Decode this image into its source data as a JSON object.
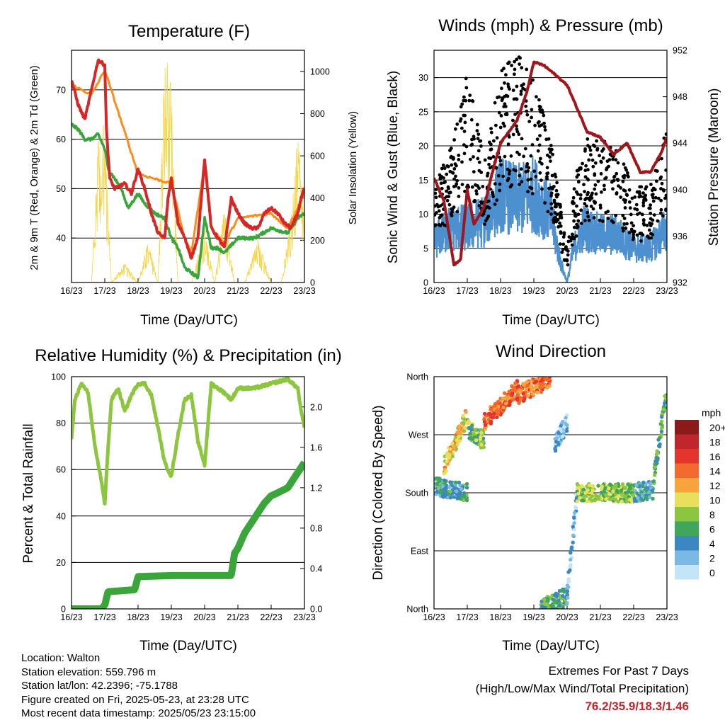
{
  "x_tick_labels": [
    "16/23",
    "17/23",
    "18/23",
    "19/23",
    "20/23",
    "21/23",
    "22/23",
    "23/23"
  ],
  "xlabel": "Time (Day/UTC)",
  "panels": {
    "temperature": {
      "title": "Temperature (F)",
      "ylabel_left": "2m & 9m T (Red, Orange) & 2m Td (Green)",
      "ylabel_right": "Solar Insolation (Yellow)",
      "yticks_left": [
        "40",
        "50",
        "60",
        "70"
      ],
      "yticks_right": [
        "0",
        "200",
        "400",
        "600",
        "800",
        "1000"
      ]
    },
    "winds": {
      "title": "Winds (mph) & Pressure (mb)",
      "ylabel_left": "Sonic Wind & Gust (Blue, Black)",
      "ylabel_right": "Station Pressure (Maroon)",
      "yticks_left": [
        "0",
        "5",
        "10",
        "15",
        "20",
        "25",
        "30"
      ],
      "yticks_right": [
        "932",
        "936",
        "940",
        "944",
        "948",
        "952"
      ]
    },
    "humidity": {
      "title": "Relative Humidity (%) & Precipitation (in)",
      "ylabel_left": "Percent & Total Rainfall",
      "yticks_left": [
        "0",
        "20",
        "40",
        "60",
        "80",
        "100"
      ],
      "yticks_right": [
        "0.0",
        "0.4",
        "0.8",
        "1.2",
        "1.6",
        "2.0"
      ]
    },
    "direction": {
      "title": "Wind Direction",
      "ylabel_left": "Direction (Colored By Speed)",
      "yticks_left": [
        "North",
        "East",
        "South",
        "West",
        "North"
      ],
      "legend_title": "mph",
      "legend_labels": [
        "20+",
        "18",
        "16",
        "14",
        "12",
        "10",
        "8",
        "6",
        "4",
        "2",
        "0"
      ],
      "legend_colors": [
        "#8b1a1a",
        "#c0272d",
        "#e3352b",
        "#f26a2e",
        "#f9a33d",
        "#e8e05a",
        "#8cc63f",
        "#3fa65b",
        "#3b87c4",
        "#7ab8e6",
        "#c4e4f7"
      ]
    }
  },
  "footer": {
    "location": "Location: Walton",
    "elevation": "Station elevation: 559.796 m",
    "latlon": "Station lat/lon: 42.2396; -75.1788",
    "created": "Figure created on Fri, 2025-05-23, at 23:28 UTC",
    "recent": "Most recent data timestamp: 2025/05/23 23:15:00"
  },
  "extremes": {
    "title": "Extremes For Past 7 Days",
    "subtitle": "(High/Low/Max Wind/Total Precipitation)",
    "values": "76.2/35.9/18.3/1.46"
  },
  "chart_data": [
    {
      "type": "line",
      "title": "Temperature (F)",
      "x_unit": "days since 16/23 UTC",
      "ylim": [
        31,
        78
      ],
      "y2lim": [
        0,
        1100
      ],
      "series": [
        {
          "name": "2m T",
          "color": "#d62728",
          "x": [
            0,
            0.2,
            0.4,
            0.6,
            0.8,
            1.0,
            1.05,
            1.15,
            1.3,
            1.6,
            1.8,
            2.0,
            2.2,
            2.4,
            2.6,
            2.8,
            2.9,
            3.0,
            3.2,
            3.4,
            3.6,
            3.8,
            4.0,
            4.2,
            4.4,
            4.6,
            4.8,
            5.0,
            5.2,
            5.4,
            5.6,
            5.8,
            6.0,
            6.2,
            6.4,
            6.6,
            6.8,
            6.9,
            7.0
          ],
          "y": [
            72,
            67,
            64,
            70,
            76,
            75,
            62,
            52,
            50,
            51,
            49,
            54,
            50,
            45,
            41,
            40,
            48,
            52,
            43,
            40,
            36,
            40,
            56,
            42,
            40,
            38,
            48,
            45,
            43,
            42,
            42,
            45,
            46,
            45,
            43,
            42,
            45,
            48,
            50
          ]
        },
        {
          "name": "9m T",
          "color": "#ff8c1a",
          "x": [
            0,
            0.6,
            1.0,
            2.0,
            3.0,
            3.4,
            3.6,
            4.0,
            4.2,
            4.6,
            5.0,
            6.0,
            6.5,
            7.0
          ],
          "y": [
            71,
            69,
            74,
            53,
            51,
            40,
            37,
            55,
            42,
            39,
            44,
            45,
            42,
            49
          ]
        },
        {
          "name": "2m Td",
          "color": "#3aa53a",
          "x": [
            0,
            0.2,
            0.4,
            0.6,
            0.8,
            1.0,
            1.1,
            1.3,
            1.5,
            1.7,
            2.0,
            2.2,
            2.5,
            2.8,
            3.0,
            3.2,
            3.4,
            3.6,
            3.8,
            4.0,
            4.2,
            4.4,
            4.6,
            5.0,
            5.5,
            6.0,
            6.5,
            6.8,
            7.0
          ],
          "y": [
            63,
            62,
            60,
            60,
            61,
            58,
            54,
            52,
            50,
            46,
            49,
            47,
            45,
            44,
            40,
            38,
            34,
            33,
            32,
            44,
            38,
            38,
            37,
            40,
            40,
            42,
            41,
            44,
            45
          ]
        },
        {
          "name": "Solar Insolation",
          "axis": "y2",
          "color": "#f4d64b",
          "x": [
            0,
            0.6,
            0.8,
            1.0,
            1.2,
            1.6,
            2.0,
            2.3,
            2.6,
            2.8,
            3.0,
            3.2,
            3.6,
            4.0,
            4.3,
            4.6,
            4.9,
            5.2,
            5.6,
            6.0,
            6.3,
            6.6,
            6.8,
            6.9,
            7.0
          ],
          "y": [
            0,
            0,
            650,
            750,
            0,
            90,
            0,
            190,
            0,
            1100,
            900,
            0,
            0,
            250,
            0,
            350,
            0,
            0,
            200,
            0,
            0,
            300,
            680,
            500,
            350
          ]
        }
      ]
    },
    {
      "type": "line",
      "title": "Winds (mph) & Pressure (mb)",
      "x_unit": "days since 16/23 UTC",
      "ylim": [
        0,
        34
      ],
      "y2lim": [
        932,
        952
      ],
      "series": [
        {
          "name": "Sonic Wind",
          "color": "#4d90d0",
          "x": [
            0,
            0.5,
            1.0,
            1.5,
            2.0,
            2.5,
            3.0,
            3.5,
            3.8,
            4.0,
            4.2,
            4.5,
            5.0,
            5.5,
            6.0,
            6.5,
            7.0
          ],
          "y": [
            6,
            8,
            8,
            9,
            13,
            12,
            13,
            10,
            3,
            0,
            5,
            8,
            7,
            7,
            5,
            5,
            8
          ]
        },
        {
          "name": "Gust",
          "color": "#000000",
          "x": [
            0,
            0.5,
            1.0,
            1.5,
            2.0,
            2.5,
            3.0,
            3.5,
            3.8,
            4.0,
            4.2,
            4.5,
            5.0,
            5.5,
            6.0,
            6.5,
            7.0
          ],
          "y": [
            10,
            14,
            22,
            13,
            22,
            24,
            21,
            15,
            8,
            3,
            10,
            15,
            15,
            14,
            10,
            10,
            17
          ]
        },
        {
          "name": "Station Pressure",
          "axis": "y2",
          "color": "#a0161b",
          "x": [
            0,
            0.3,
            0.6,
            0.8,
            1.0,
            1.2,
            1.5,
            1.8,
            2.0,
            2.5,
            2.8,
            3.0,
            3.3,
            3.6,
            4.0,
            4.3,
            4.6,
            5.0,
            5.4,
            5.8,
            6.2,
            6.5,
            6.8,
            7.0
          ],
          "y": [
            941,
            939,
            933.5,
            934,
            940,
            937,
            938.5,
            942,
            944,
            946,
            948.5,
            951,
            950.7,
            950,
            949,
            947,
            945,
            944.5,
            943,
            944,
            941.5,
            941.5,
            943,
            944.5
          ]
        }
      ]
    },
    {
      "type": "line",
      "title": "Relative Humidity (%) & Precipitation (in)",
      "x_unit": "days since 16/23 UTC",
      "ylim": [
        0,
        100
      ],
      "y2lim": [
        0,
        2.3
      ],
      "series": [
        {
          "name": "Relative Humidity",
          "color": "#8cc63f",
          "x": [
            0,
            0.1,
            0.3,
            0.5,
            0.7,
            0.9,
            1.0,
            1.1,
            1.2,
            1.4,
            1.6,
            1.8,
            2.0,
            2.2,
            2.4,
            2.6,
            2.8,
            3.0,
            3.2,
            3.4,
            3.6,
            3.8,
            4.0,
            4.2,
            4.4,
            4.6,
            4.8,
            5.0,
            5.5,
            6.0,
            6.5,
            6.8,
            6.9,
            7.0
          ],
          "y": [
            73,
            90,
            97,
            93,
            70,
            55,
            45,
            70,
            90,
            95,
            85,
            92,
            97,
            97,
            92,
            78,
            63,
            57,
            75,
            90,
            92,
            72,
            62,
            97,
            95,
            93,
            90,
            95,
            95,
            97,
            99,
            95,
            85,
            78
          ]
        },
        {
          "name": "Total Precipitation",
          "axis": "y2",
          "color": "#3aa53a",
          "x": [
            0,
            0.9,
            1.0,
            1.1,
            1.9,
            2.0,
            3.0,
            4.0,
            4.8,
            4.9,
            5.0,
            5.2,
            5.5,
            5.8,
            6.0,
            6.2,
            6.5,
            6.8,
            7.0
          ],
          "y": [
            0,
            0,
            0.04,
            0.17,
            0.19,
            0.32,
            0.33,
            0.33,
            0.33,
            0.55,
            0.6,
            0.75,
            0.9,
            1.05,
            1.12,
            1.15,
            1.2,
            1.35,
            1.45
          ]
        }
      ]
    },
    {
      "type": "scatter",
      "title": "Wind Direction",
      "x_unit": "days since 16/23 UTC",
      "y_unit": "degrees clockwise from North (0=North, 90=East, 180=South, 270=West, 360=North)",
      "ylim": [
        0,
        360
      ],
      "colorbar_unit": "mph",
      "segments": [
        {
          "x": [
            0,
            1.0
          ],
          "dir": [
            190,
            180
          ],
          "speed": 5
        },
        {
          "x": [
            0.3,
            1.0
          ],
          "dir": [
            220,
            300
          ],
          "speed": 11
        },
        {
          "x": [
            1.0,
            1.5
          ],
          "dir": [
            280,
            260
          ],
          "speed": 7
        },
        {
          "x": [
            1.5,
            2.5
          ],
          "dir": [
            290,
            340
          ],
          "speed": 14
        },
        {
          "x": [
            2.5,
            3.5
          ],
          "dir": [
            330,
            358
          ],
          "speed": 14
        },
        {
          "x": [
            3.6,
            4.0
          ],
          "dir": [
            250,
            290
          ],
          "speed": 2
        },
        {
          "x": [
            3.2,
            4.0
          ],
          "dir": [
            0,
            20
          ],
          "speed": 6
        },
        {
          "x": [
            4.0,
            4.3
          ],
          "dir": [
            20,
            180
          ],
          "speed": 2
        },
        {
          "x": [
            4.3,
            6.0
          ],
          "dir": [
            180,
            180
          ],
          "speed": 8
        },
        {
          "x": [
            6.0,
            6.6
          ],
          "dir": [
            180,
            185
          ],
          "speed": 4
        },
        {
          "x": [
            6.6,
            7.0
          ],
          "dir": [
            200,
            340
          ],
          "speed": 6
        }
      ]
    }
  ]
}
